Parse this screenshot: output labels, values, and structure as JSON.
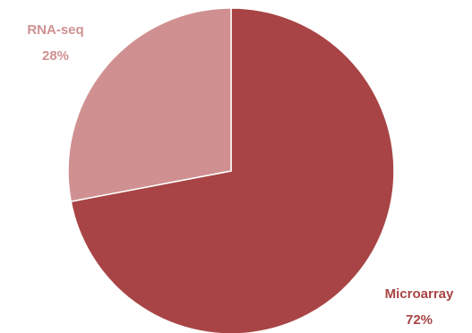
{
  "chart_data": {
    "type": "pie",
    "title": "",
    "slices": [
      {
        "name": "Microarray",
        "value": 72,
        "display": "72%",
        "color": "#a84445",
        "label_color": "#a84445"
      },
      {
        "name": "RNA-seq",
        "value": 28,
        "display": "28%",
        "color": "#d09091",
        "label_color": "#d09091"
      }
    ],
    "start_angle_deg": 0,
    "direction": "clockwise",
    "legend": "none",
    "labels": "outside-end"
  }
}
